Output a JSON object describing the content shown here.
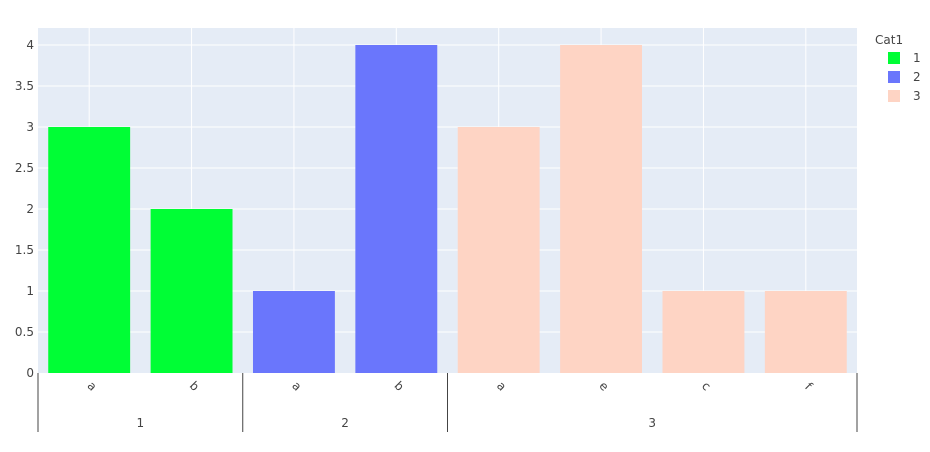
{
  "chart_data": {
    "type": "bar",
    "legend": {
      "title": "Cat1",
      "items": [
        {
          "label": "1",
          "color": "#00fe35"
        },
        {
          "label": "2",
          "color": "#6a76fc"
        },
        {
          "label": "3",
          "color": "#fed4c4"
        }
      ]
    },
    "groups": [
      {
        "label": "1",
        "color": "#00fe35",
        "categories": [
          "a",
          "b"
        ],
        "values": [
          3,
          2
        ]
      },
      {
        "label": "2",
        "color": "#6a76fc",
        "categories": [
          "a",
          "b"
        ],
        "values": [
          1,
          4
        ]
      },
      {
        "label": "3",
        "color": "#fed4c4",
        "categories": [
          "a",
          "e",
          "c",
          "f"
        ],
        "values": [
          3,
          4,
          1,
          1
        ]
      }
    ],
    "y_ticks": [
      "0",
      "0.5",
      "1",
      "1.5",
      "2",
      "2.5",
      "3",
      "3.5",
      "4"
    ],
    "ylim": [
      0,
      4.2
    ],
    "grid": true,
    "legend_position": "top-right",
    "plot_bg": "#e5ecf6"
  }
}
